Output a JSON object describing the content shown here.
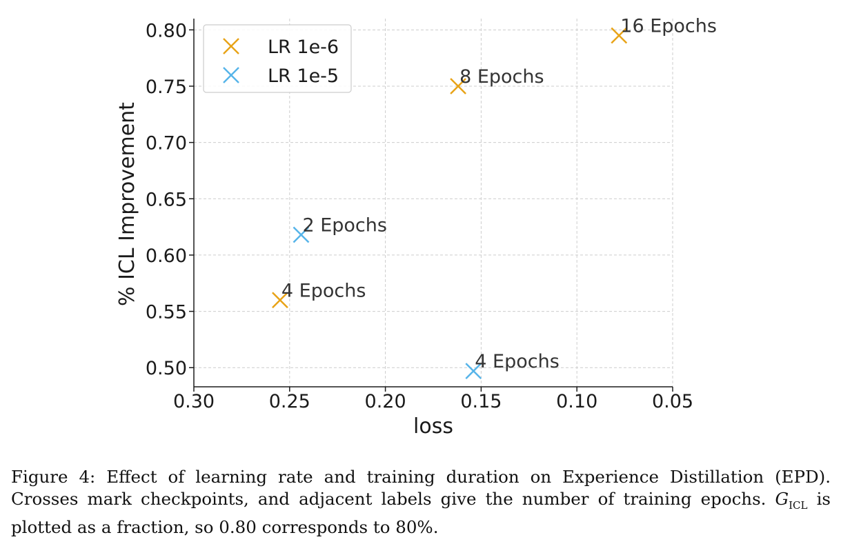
{
  "chart_data": {
    "type": "scatter",
    "xlabel": "loss",
    "ylabel": "% ICL Improvement",
    "xlim": [
      0.3,
      0.05
    ],
    "ylim": [
      0.483,
      0.81
    ],
    "x_inverted": true,
    "x_ticks": [
      "0.30",
      "0.25",
      "0.20",
      "0.15",
      "0.10",
      "0.05"
    ],
    "x_tick_values": [
      0.3,
      0.25,
      0.2,
      0.15,
      0.1,
      0.05
    ],
    "y_ticks": [
      "0.50",
      "0.55",
      "0.60",
      "0.65",
      "0.70",
      "0.75",
      "0.80"
    ],
    "y_tick_values": [
      0.5,
      0.55,
      0.6,
      0.65,
      0.7,
      0.75,
      0.8
    ],
    "grid": true,
    "legend_position": "top-left",
    "marker": "x",
    "series": [
      {
        "name": "LR 1e-6",
        "color": "#E8A317",
        "points": [
          {
            "x": 0.255,
            "y": 0.56,
            "label": "4 Epochs"
          },
          {
            "x": 0.162,
            "y": 0.75,
            "label": "8 Epochs"
          },
          {
            "x": 0.078,
            "y": 0.795,
            "label": "16 Epochs"
          }
        ]
      },
      {
        "name": "LR 1e-5",
        "color": "#56B4E9",
        "points": [
          {
            "x": 0.244,
            "y": 0.618,
            "label": "2 Epochs"
          },
          {
            "x": 0.154,
            "y": 0.497,
            "label": "4 Epochs"
          }
        ]
      }
    ]
  },
  "caption": {
    "prefix": "Figure 4: Effect of learning rate and training duration on Experience Distillation (EPD). Crosses mark checkpoints, and adjacent labels give the number of training epochs. ",
    "math_symbol": "G",
    "math_sub": "ICL",
    "suffix": " is plotted as a fraction, so 0.80 corresponds to 80%."
  }
}
